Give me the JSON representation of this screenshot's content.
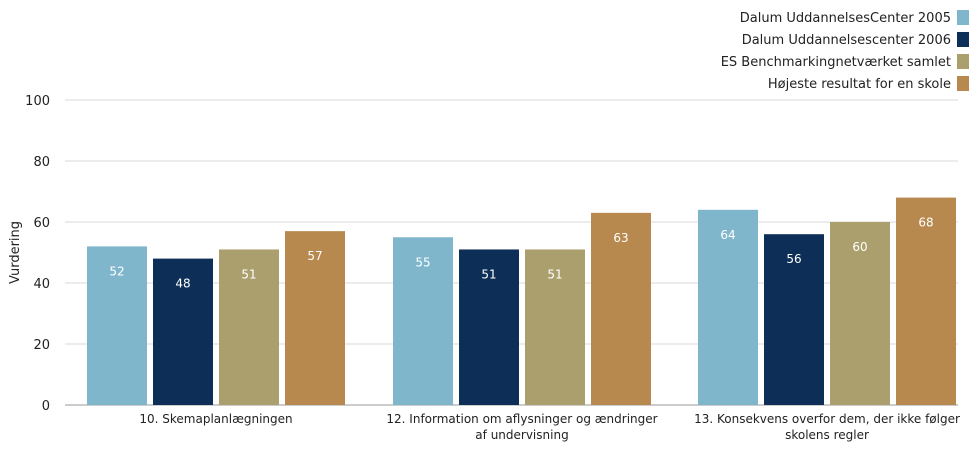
{
  "chart_data": {
    "type": "bar",
    "title": "",
    "xlabel": "",
    "ylabel": "Vurdering",
    "ylim": [
      0,
      100
    ],
    "yticks": [
      0,
      20,
      40,
      60,
      80,
      100
    ],
    "grid": true,
    "legend_position": "top-right",
    "categories": [
      [
        "10. Skemaplanlægningen"
      ],
      [
        "12. Information om aflysninger og ændringer",
        "af undervisning"
      ],
      [
        "13. Konsekvens overfor dem, der ikke følger",
        "skolens regler"
      ]
    ],
    "series": [
      {
        "name": "Dalum UddannelsesCenter 2005",
        "color": "#7fb6cc",
        "values": [
          52,
          55,
          64
        ]
      },
      {
        "name": "Dalum Uddannelsescenter 2006",
        "color": "#0d2f57",
        "values": [
          48,
          51,
          56
        ]
      },
      {
        "name": "ES Benchmarkingnetværket samlet",
        "color": "#ab9f6e",
        "values": [
          51,
          51,
          60
        ]
      },
      {
        "name": "Højeste resultat for en skole",
        "color": "#b8894f",
        "values": [
          57,
          63,
          68
        ]
      }
    ]
  }
}
